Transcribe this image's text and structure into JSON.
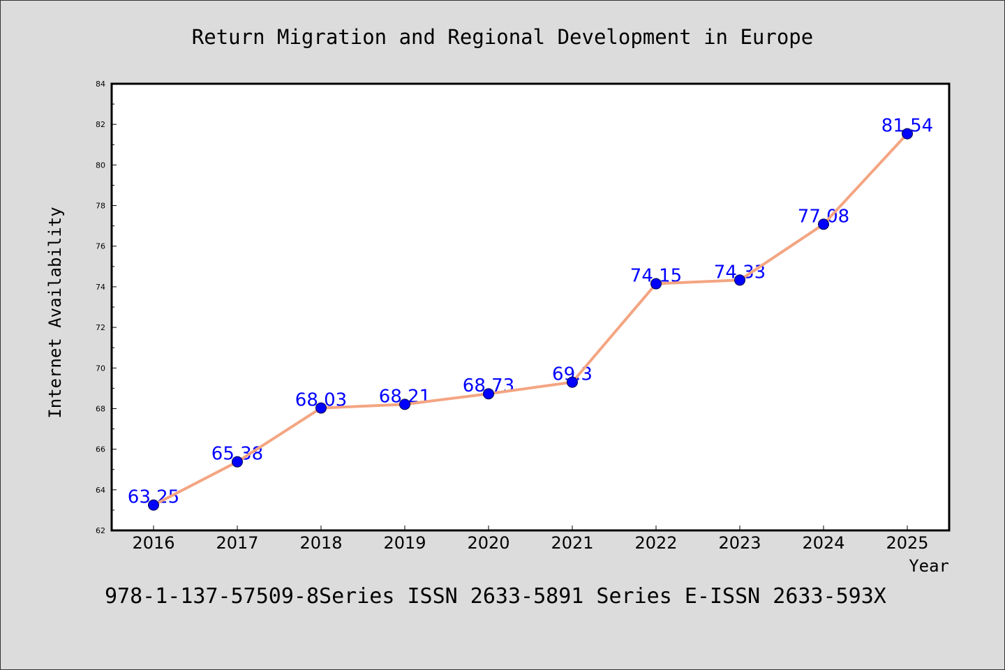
{
  "chart_data": {
    "type": "line",
    "title": "Return Migration and Regional Development in Europe",
    "xlabel": "Year",
    "ylabel": "Internet Availability",
    "categories": [
      "2016",
      "2017",
      "2018",
      "2019",
      "2020",
      "2021",
      "2022",
      "2023",
      "2024",
      "2025"
    ],
    "series": [
      {
        "values": [
          63.25,
          65.38,
          68.03,
          68.21,
          68.73,
          69.3,
          74.15,
          74.33,
          77.08,
          81.54
        ],
        "data_labels": [
          "63.25",
          "65.38",
          "68.03",
          "68.21",
          "68.73",
          "69.3",
          "74.15",
          "74.33",
          "77.08",
          "81.54"
        ],
        "line_color": "#f4a582",
        "marker_color": "#0000ff",
        "label_color": "#0000ff"
      }
    ],
    "ylim": [
      62,
      84
    ],
    "yticks": [
      62,
      64,
      66,
      68,
      70,
      72,
      74,
      76,
      78,
      80,
      82,
      84
    ],
    "grid": false,
    "legend": "none"
  },
  "footer": "978-1-137-57509-8Series ISSN 2633-5891 Series E-ISSN 2633-593X",
  "colors": {
    "background": "#dcdcdc",
    "plot_background": "#ffffff",
    "axis": "#000000",
    "text": "#000000"
  }
}
